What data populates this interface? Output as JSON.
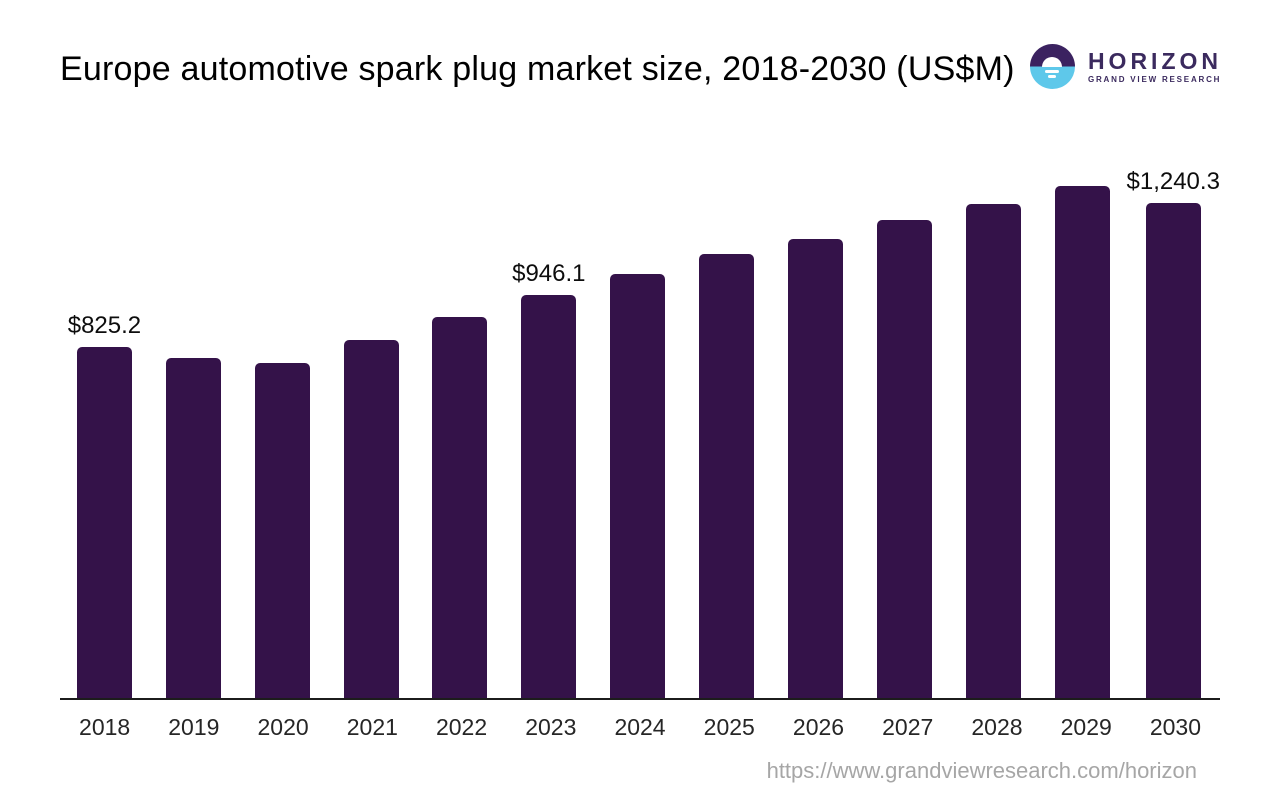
{
  "header": {
    "title": "Europe automotive spark plug market size, 2018-2030 (US$M)",
    "logo": {
      "name": "HORIZON",
      "subtitle": "GRAND VIEW RESEARCH"
    }
  },
  "footer": {
    "url": "https://www.grandviewresearch.com/horizon"
  },
  "colors": {
    "bar": "#341249",
    "axis_line": "#1c1c1c",
    "logo_purple": "#3b2260",
    "logo_blue": "#5ec8ea",
    "logo_text": "#3b2a5e",
    "footer_text": "#a6a6a6"
  },
  "chart_data": {
    "type": "bar",
    "title": "Europe automotive spark plug market size, 2018-2030 (US$M)",
    "unit": "US$M",
    "categories": [
      "2018",
      "2019",
      "2020",
      "2021",
      "2022",
      "2023",
      "2024",
      "2025",
      "2026",
      "2027",
      "2028",
      "2029",
      "2030"
    ],
    "values": [
      825.2,
      798.0,
      786.0,
      842.0,
      896.0,
      946.1,
      997.0,
      1042.0,
      1079.0,
      1123.0,
      1161.0,
      1203.0,
      1240.3
    ],
    "data_labels": {
      "2018": "$825.2",
      "2023": "$946.1",
      "2030": "$1,240.3"
    },
    "xlabel": "",
    "ylabel": "",
    "ylim": [
      0,
      1300
    ],
    "grid": false,
    "legend": "none"
  }
}
